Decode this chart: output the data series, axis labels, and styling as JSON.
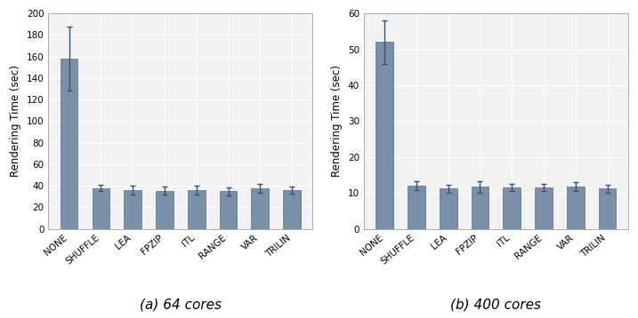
{
  "categories": [
    "NONE",
    "SHUFFLE",
    "LEA",
    "FPZIP",
    "ITL",
    "RANGE",
    "VAR",
    "TRILIN"
  ],
  "plot_a": {
    "values": [
      158,
      38,
      36,
      35.5,
      36,
      35,
      38,
      36
    ],
    "errors": [
      30,
      3,
      4,
      3.5,
      4,
      3.5,
      4,
      3
    ],
    "ylim": [
      0,
      200
    ],
    "yticks": [
      0,
      20,
      40,
      60,
      80,
      100,
      120,
      140,
      160,
      180,
      200
    ],
    "xlabel": "(a) 64 cores"
  },
  "plot_b": {
    "values": [
      52,
      12,
      11.2,
      11.7,
      11.5,
      11.5,
      11.8,
      11.2
    ],
    "errors": [
      6,
      1.2,
      1.0,
      1.5,
      1.0,
      1.0,
      1.2,
      1.0
    ],
    "ylim": [
      0,
      60
    ],
    "yticks": [
      0,
      10,
      20,
      30,
      40,
      50,
      60
    ],
    "xlabel": "(b) 400 cores"
  },
  "ylabel": "Rendering Time (sec)",
  "bar_color": "#7a8fa8",
  "bar_edgecolor": "#5a6f88",
  "errorbar_color": "#3a4f68",
  "bar_width": 0.55,
  "xlabel_fontsize": 11,
  "ylabel_fontsize": 8.5,
  "tick_fontsize": 7.5,
  "background_color": "#f2f2f2",
  "fig_background_color": "#ffffff",
  "grid_color": "#ffffff",
  "spine_color": "#aaaaaa"
}
